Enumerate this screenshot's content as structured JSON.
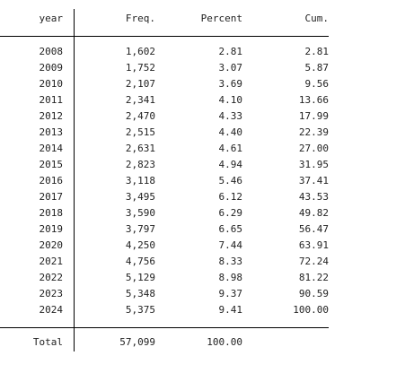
{
  "table": {
    "header": [
      "year",
      "Freq.",
      "Percent",
      "Cum."
    ],
    "rows": [
      [
        "2008",
        "1,602",
        "2.81",
        "2.81"
      ],
      [
        "2009",
        "1,752",
        "3.07",
        "5.87"
      ],
      [
        "2010",
        "2,107",
        "3.69",
        "9.56"
      ],
      [
        "2011",
        "2,341",
        "4.10",
        "13.66"
      ],
      [
        "2012",
        "2,470",
        "4.33",
        "17.99"
      ],
      [
        "2013",
        "2,515",
        "4.40",
        "22.39"
      ],
      [
        "2014",
        "2,631",
        "4.61",
        "27.00"
      ],
      [
        "2015",
        "2,823",
        "4.94",
        "31.95"
      ],
      [
        "2016",
        "3,118",
        "5.46",
        "37.41"
      ],
      [
        "2017",
        "3,495",
        "6.12",
        "43.53"
      ],
      [
        "2018",
        "3,590",
        "6.29",
        "49.82"
      ],
      [
        "2019",
        "3,797",
        "6.65",
        "56.47"
      ],
      [
        "2020",
        "4,250",
        "7.44",
        "63.91"
      ],
      [
        "2021",
        "4,756",
        "8.33",
        "72.24"
      ],
      [
        "2022",
        "5,129",
        "8.98",
        "81.22"
      ],
      [
        "2023",
        "5,348",
        "9.37",
        "90.59"
      ],
      [
        "2024",
        "5,375",
        "9.41",
        "100.00"
      ]
    ],
    "total": [
      "Total",
      "57,099",
      "100.00"
    ]
  }
}
